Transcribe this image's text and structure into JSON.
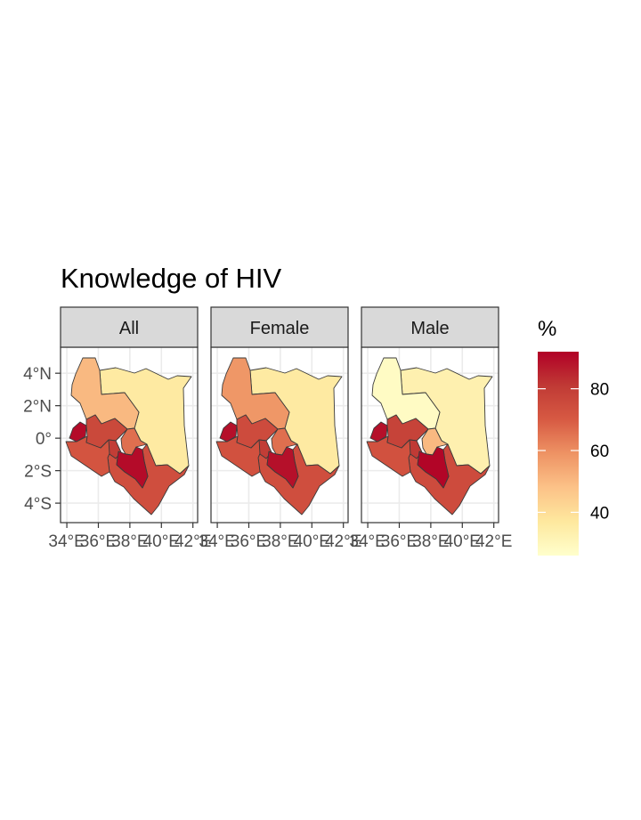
{
  "title": "Knowledge of HIV",
  "facets": [
    {
      "label": "All",
      "values": {
        "NW": 50,
        "NE": 36,
        "W1": 90,
        "W2": 76,
        "SW": 72,
        "CW": 80,
        "CN": 66,
        "C": 90,
        "SE": 74
      }
    },
    {
      "label": "Female",
      "values": {
        "NW": 58,
        "NE": 36,
        "W1": 89,
        "W2": 75,
        "SW": 73,
        "CW": 80,
        "CN": 66,
        "C": 89,
        "SE": 74
      }
    },
    {
      "label": "Male",
      "values": {
        "NW": 28,
        "NE": 33,
        "W1": 89,
        "W2": 78,
        "SW": 73,
        "CW": 81,
        "CN": 50,
        "C": 91,
        "SE": 75
      }
    }
  ],
  "x_ticks": [
    "34°E",
    "36°E",
    "38°E",
    "40°E",
    "42°E"
  ],
  "x_tick_values": [
    34,
    36,
    38,
    40,
    42
  ],
  "y_ticks": [
    "4°N",
    "2°N",
    "0°",
    "2°S",
    "4°S"
  ],
  "y_tick_values": [
    4,
    2,
    0,
    -2,
    -4
  ],
  "xlim": [
    33.6,
    42.3
  ],
  "ylim": [
    -5.2,
    5.6
  ],
  "legend": {
    "title": "%",
    "ticks": [
      "40",
      "60",
      "80"
    ],
    "tick_values": [
      40,
      60,
      80
    ],
    "range": [
      26,
      92
    ],
    "colors": [
      "#FFFFCC",
      "#FEE89E",
      "#FCC288",
      "#EE9364",
      "#D75A43",
      "#C03A35",
      "#B10026"
    ]
  }
}
